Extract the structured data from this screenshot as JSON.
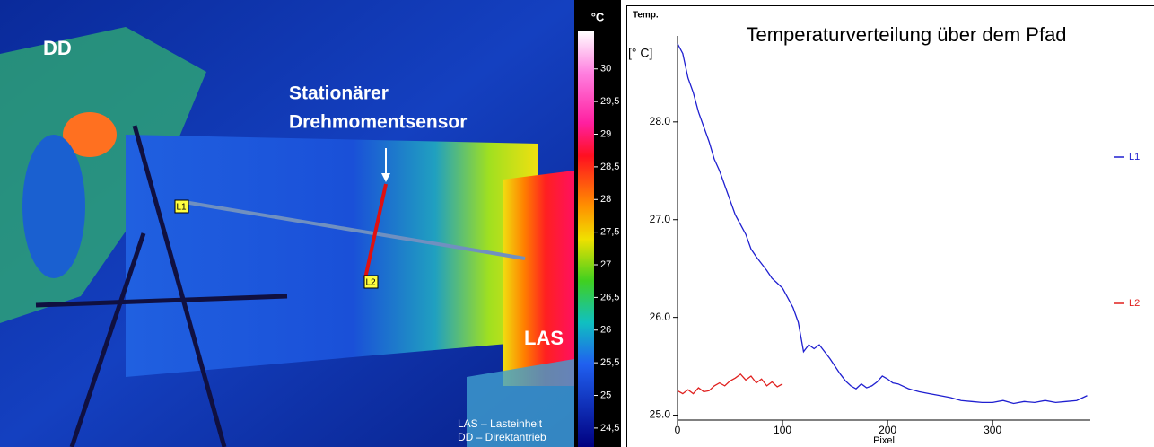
{
  "thermal_image": {
    "labels": {
      "dd": "DD",
      "las": "LAS",
      "sensor": [
        "Stationärer",
        "Drehmomentsensor"
      ],
      "l1": "L1",
      "l2": "L2"
    },
    "legend": [
      "LAS – Lasteinheit",
      "DD – Direktantrieb"
    ],
    "colorbar": {
      "unit": "°C",
      "lim": [
        24.21,
        30.89
      ],
      "ticks": [
        30,
        {
          "value": 29.5,
          "label": "29,5"
        },
        29,
        {
          "value": 28.5,
          "label": "28,5"
        },
        28,
        {
          "value": 27.5,
          "label": "27,5"
        },
        27,
        {
          "value": 26.5,
          "label": "26,5"
        },
        26,
        {
          "value": 25.5,
          "label": "25,5"
        },
        25,
        {
          "value": 24.5,
          "label": "24,5"
        }
      ]
    }
  },
  "chart_data": {
    "type": "line",
    "title": "Temperaturverteilung über dem Pfad",
    "y_label": "Temp.",
    "y_unit": "[° C]",
    "x_label": "Pixel",
    "xlim": [
      0,
      393
    ],
    "ylim": [
      24.95,
      28.88
    ],
    "xticks": [
      0,
      100,
      200,
      300
    ],
    "yticks": [
      {
        "value": 25,
        "label": "25.0"
      },
      {
        "value": 26,
        "label": "26.0"
      },
      {
        "value": 27,
        "label": "27.0"
      },
      {
        "value": 28,
        "label": "28.0"
      }
    ],
    "grid": false,
    "legend": "right",
    "series": [
      {
        "name": "L1",
        "color": "#1f1fd0",
        "x": [
          0,
          5,
          10,
          15,
          20,
          25,
          30,
          35,
          40,
          45,
          50,
          55,
          60,
          65,
          70,
          75,
          80,
          85,
          90,
          95,
          100,
          105,
          110,
          115,
          120,
          125,
          130,
          135,
          140,
          145,
          150,
          155,
          160,
          165,
          170,
          175,
          180,
          185,
          190,
          195,
          200,
          205,
          210,
          220,
          230,
          240,
          250,
          260,
          270,
          280,
          290,
          300,
          310,
          320,
          330,
          340,
          350,
          360,
          370,
          380,
          390
        ],
        "values": [
          28.8,
          28.7,
          28.45,
          28.3,
          28.1,
          27.95,
          27.8,
          27.62,
          27.5,
          27.35,
          27.2,
          27.05,
          26.95,
          26.85,
          26.7,
          26.62,
          26.55,
          26.48,
          26.4,
          26.35,
          26.3,
          26.2,
          26.1,
          25.95,
          25.65,
          25.72,
          25.68,
          25.72,
          25.65,
          25.58,
          25.5,
          25.42,
          25.35,
          25.3,
          25.27,
          25.32,
          25.28,
          25.3,
          25.34,
          25.4,
          25.37,
          25.33,
          25.32,
          25.27,
          25.24,
          25.22,
          25.2,
          25.18,
          25.15,
          25.14,
          25.13,
          25.13,
          25.15,
          25.12,
          25.14,
          25.13,
          25.15,
          25.13,
          25.14,
          25.15,
          25.2
        ]
      },
      {
        "name": "L2",
        "color": "#e0201e",
        "x": [
          0,
          5,
          10,
          15,
          20,
          25,
          30,
          35,
          40,
          45,
          50,
          55,
          60,
          65,
          70,
          75,
          80,
          85,
          90,
          95,
          100
        ],
        "values": [
          25.25,
          25.22,
          25.26,
          25.22,
          25.28,
          25.24,
          25.25,
          25.3,
          25.33,
          25.3,
          25.35,
          25.38,
          25.42,
          25.36,
          25.4,
          25.33,
          25.37,
          25.3,
          25.34,
          25.29,
          25.32
        ]
      }
    ]
  }
}
